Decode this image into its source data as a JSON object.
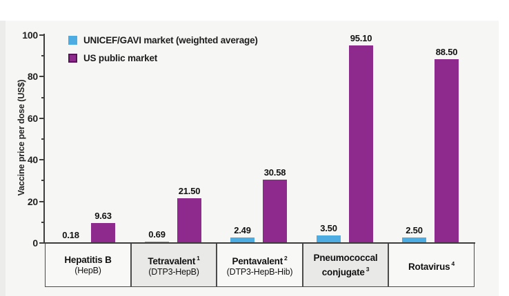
{
  "chart_data": {
    "type": "bar",
    "title": "",
    "ylabel": "Vaccine price per dose (US$)",
    "xlabel": "",
    "ylim": [
      0,
      100
    ],
    "yticks_major": [
      0,
      20,
      40,
      60,
      80,
      100
    ],
    "yticks_minor": [
      10,
      30,
      50,
      70,
      90
    ],
    "grid": false,
    "legend_position": "top-left",
    "categories": [
      {
        "name": "Hepatitis B",
        "sup": "",
        "sub": "(HepB)",
        "shaded": false
      },
      {
        "name": "Tetravalent",
        "sup": "1",
        "sub": "(DTP3-HepB)",
        "shaded": true
      },
      {
        "name": "Pentavalent",
        "sup": "2",
        "sub": "(DTP3-HepB-Hib)",
        "shaded": false
      },
      {
        "name": "Pneumococcal conjugate",
        "sup": "3",
        "sub": "",
        "shaded": true
      },
      {
        "name": "Rotavirus",
        "sup": "4",
        "sub": "",
        "shaded": false
      }
    ],
    "series": [
      {
        "name": "UNICEF/GAVI market (weighted average)",
        "color": "#4dade2",
        "swatch_border": "",
        "values": [
          0.18,
          0.69,
          2.49,
          3.5,
          2.5
        ]
      },
      {
        "name": "US public market",
        "color": "#8e2a8e",
        "swatch_border": "#571457",
        "values": [
          9.63,
          21.5,
          30.58,
          95.1,
          88.5
        ]
      }
    ],
    "value_label_format": "2dp",
    "colors": {
      "panel_bg": "#f6f6f5",
      "shaded_box_bg": "#e9e9e8",
      "plain_box_bg": "#f8f8f7",
      "axis": "#3d3d3d",
      "box_border": "#4a4a4a",
      "text": "#111111"
    }
  }
}
